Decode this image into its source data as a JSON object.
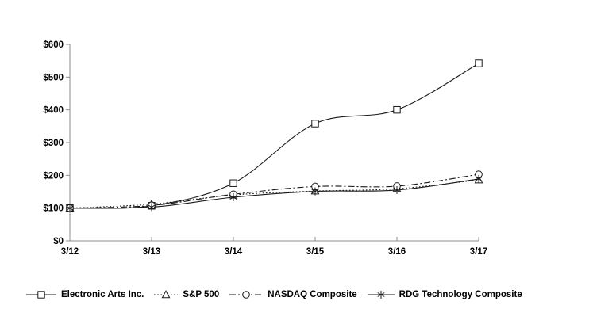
{
  "chart_data": {
    "type": "line",
    "title": "",
    "xlabel": "",
    "ylabel": "",
    "grid": false,
    "legend_position": "bottom",
    "x_categories": [
      "3/12",
      "3/13",
      "3/14",
      "3/15",
      "3/16",
      "3/17"
    ],
    "y_axis": {
      "range": [
        0,
        600
      ],
      "ticks": [
        0,
        100,
        200,
        300,
        400,
        500,
        600
      ],
      "tick_labels": [
        "$0",
        "$100",
        "$200",
        "$300",
        "$400",
        "$500",
        "$600"
      ]
    },
    "series": [
      {
        "name": "Electronic Arts Inc.",
        "marker": "square",
        "line": "solid",
        "values": [
          100,
          107,
          176,
          358,
          400,
          542
        ]
      },
      {
        "name": "S&P 500",
        "marker": "triangle",
        "line": "dotted",
        "values": [
          100,
          112,
          140,
          152,
          159,
          186
        ]
      },
      {
        "name": "NASDAQ Composite",
        "marker": "circle",
        "line": "dash-dot",
        "values": [
          100,
          108,
          142,
          166,
          167,
          203
        ]
      },
      {
        "name": "RDG Technology Composite",
        "marker": "asterisk",
        "line": "solid",
        "values": [
          100,
          103,
          133,
          151,
          155,
          189
        ]
      }
    ]
  },
  "colors": {
    "background": "#ffffff",
    "axis": "#8c8c8c",
    "series": "#1a1a1a",
    "text": "#000000",
    "marker_fill": "#ffffff"
  }
}
